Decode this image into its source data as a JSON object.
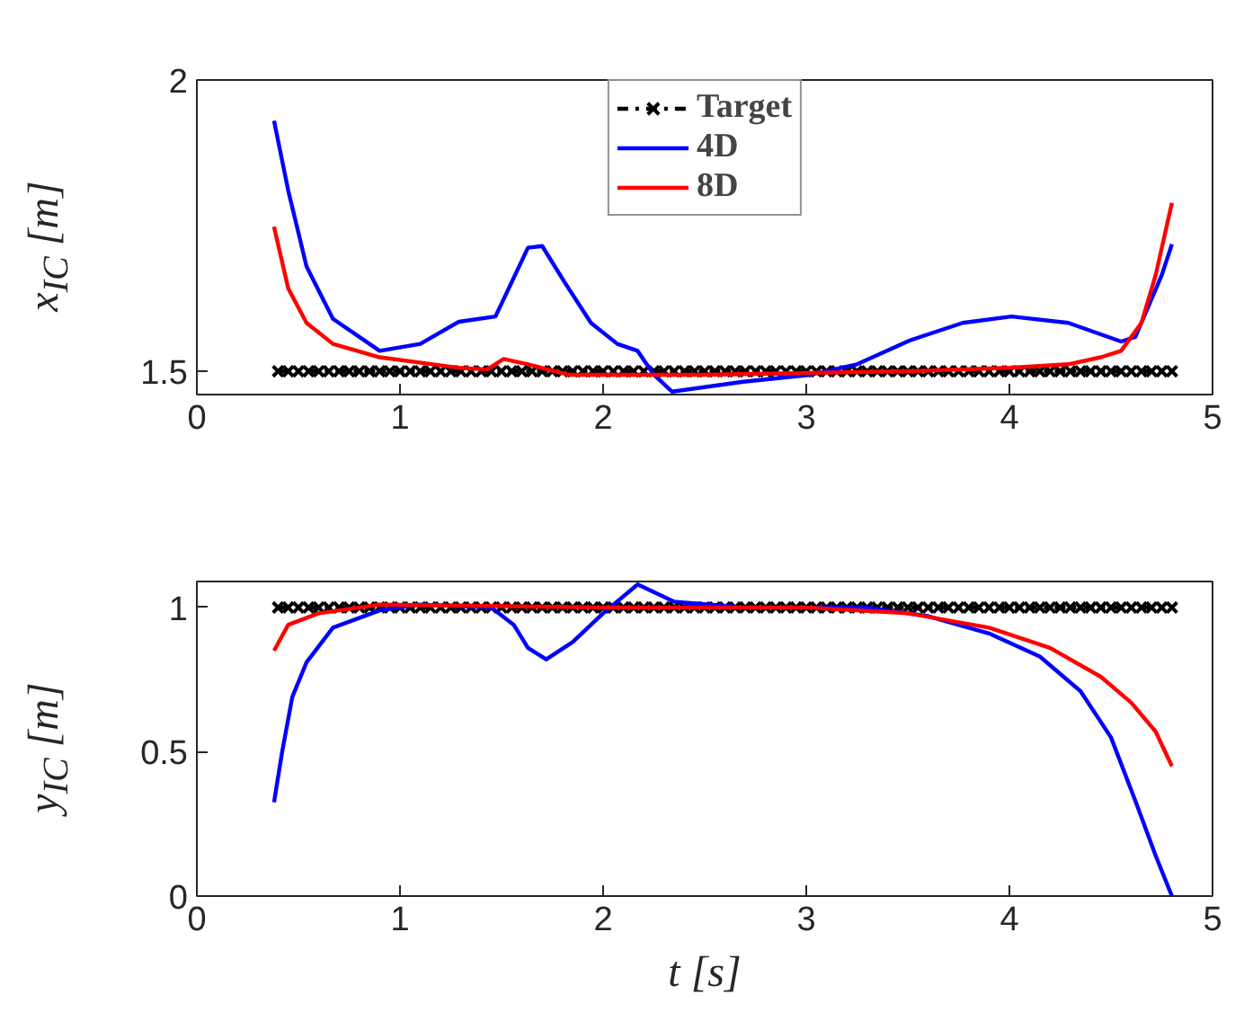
{
  "chart_data": [
    {
      "type": "line",
      "ylabel": "x$_{IC}$ [m]",
      "xlim": [
        0,
        5
      ],
      "xticks": [
        0,
        1,
        2,
        3,
        4,
        5
      ],
      "ylim": [
        1.46,
        2.0
      ],
      "yticks": [
        1.5,
        2
      ],
      "grid": false,
      "legend": "top",
      "series": [
        {
          "name": "Target",
          "color": "#000000",
          "line_style": "dashdot",
          "marker": "cross",
          "x": [
            0.4,
            0.45,
            0.5,
            0.55,
            0.6,
            0.65,
            0.7,
            0.75,
            0.8,
            0.85,
            0.9,
            0.95,
            1.0,
            1.05,
            1.1,
            1.15,
            1.2,
            1.25,
            1.3,
            1.35,
            1.4,
            1.45,
            1.5,
            1.55,
            1.6,
            1.65,
            1.7,
            1.75,
            1.8,
            1.85,
            1.9,
            1.95,
            2.0,
            2.05,
            2.1,
            2.15,
            2.2,
            2.25,
            2.3,
            2.35,
            2.4,
            2.45,
            2.5,
            2.55,
            2.6,
            2.65,
            2.7,
            2.75,
            2.8,
            2.85,
            2.9,
            2.95,
            3.0,
            3.05,
            3.1,
            3.15,
            3.2,
            3.25,
            3.3,
            3.35,
            3.4,
            3.45,
            3.5,
            3.55,
            3.6,
            3.65,
            3.7,
            3.75,
            3.8,
            3.85,
            3.9,
            3.95,
            4.0,
            4.05,
            4.1,
            4.15,
            4.2,
            4.25,
            4.3,
            4.35,
            4.4,
            4.45,
            4.5,
            4.55,
            4.6,
            4.65,
            4.7,
            4.75,
            4.8
          ],
          "values": [
            1.5,
            1.5,
            1.5,
            1.5,
            1.5,
            1.5,
            1.5,
            1.5,
            1.5,
            1.5,
            1.5,
            1.5,
            1.5,
            1.5,
            1.5,
            1.5,
            1.5,
            1.5,
            1.5,
            1.5,
            1.5,
            1.5,
            1.5,
            1.5,
            1.5,
            1.5,
            1.5,
            1.5,
            1.5,
            1.5,
            1.5,
            1.5,
            1.5,
            1.5,
            1.5,
            1.5,
            1.5,
            1.5,
            1.5,
            1.5,
            1.5,
            1.5,
            1.5,
            1.5,
            1.5,
            1.5,
            1.5,
            1.5,
            1.5,
            1.5,
            1.5,
            1.5,
            1.5,
            1.5,
            1.5,
            1.5,
            1.5,
            1.5,
            1.5,
            1.5,
            1.5,
            1.5,
            1.5,
            1.5,
            1.5,
            1.5,
            1.5,
            1.5,
            1.5,
            1.5,
            1.5,
            1.5,
            1.5,
            1.5,
            1.5,
            1.5,
            1.5,
            1.5,
            1.5,
            1.5,
            1.5,
            1.5,
            1.5,
            1.5,
            1.5,
            1.5,
            1.5,
            1.5,
            1.5
          ]
        },
        {
          "name": "4D",
          "color": "#0000ff",
          "x": [
            0.38,
            0.45,
            0.54,
            0.67,
            0.9,
            1.1,
            1.29,
            1.47,
            1.55,
            1.63,
            1.7,
            1.81,
            1.94,
            2.07,
            2.17,
            2.25,
            2.34,
            2.69,
            3.02,
            3.25,
            3.51,
            3.77,
            4.01,
            4.29,
            4.55,
            4.62,
            4.75,
            4.8
          ],
          "values": [
            1.93,
            1.81,
            1.68,
            1.59,
            1.535,
            1.547,
            1.585,
            1.594,
            1.653,
            1.712,
            1.715,
            1.653,
            1.583,
            1.547,
            1.535,
            1.494,
            1.465,
            1.482,
            1.494,
            1.512,
            1.553,
            1.583,
            1.594,
            1.583,
            1.551,
            1.559,
            1.665,
            1.718
          ]
        },
        {
          "name": "8D",
          "color": "#ff0000",
          "x": [
            0.38,
            0.45,
            0.54,
            0.67,
            0.9,
            1.29,
            1.43,
            1.51,
            1.63,
            1.83,
            2.5,
            3.5,
            4.0,
            4.29,
            4.45,
            4.55,
            4.65,
            4.72,
            4.8
          ],
          "values": [
            1.748,
            1.642,
            1.583,
            1.547,
            1.524,
            1.506,
            1.503,
            1.521,
            1.512,
            1.494,
            1.494,
            1.5,
            1.506,
            1.512,
            1.524,
            1.535,
            1.583,
            1.665,
            1.789
          ]
        }
      ]
    },
    {
      "type": "line",
      "xlabel": "t [s]",
      "ylabel": "y$_{IC}$ [m]",
      "xlim": [
        0,
        5
      ],
      "xticks": [
        0,
        1,
        2,
        3,
        4,
        5
      ],
      "ylim": [
        0,
        1.09
      ],
      "yticks": [
        0,
        0.5,
        1
      ],
      "grid": false,
      "series": [
        {
          "color": "#000000",
          "line_style": "dashdot",
          "marker": "cross",
          "x": [
            0.4,
            0.45,
            0.5,
            0.55,
            0.6,
            0.65,
            0.7,
            0.75,
            0.8,
            0.85,
            0.9,
            0.95,
            1.0,
            1.05,
            1.1,
            1.15,
            1.2,
            1.25,
            1.3,
            1.35,
            1.4,
            1.45,
            1.5,
            1.55,
            1.6,
            1.65,
            1.7,
            1.75,
            1.8,
            1.85,
            1.9,
            1.95,
            2.0,
            2.05,
            2.1,
            2.15,
            2.2,
            2.25,
            2.3,
            2.35,
            2.4,
            2.45,
            2.5,
            2.55,
            2.6,
            2.65,
            2.7,
            2.75,
            2.8,
            2.85,
            2.9,
            2.95,
            3.0,
            3.05,
            3.1,
            3.15,
            3.2,
            3.25,
            3.3,
            3.35,
            3.4,
            3.45,
            3.5,
            3.55,
            3.6,
            3.65,
            3.7,
            3.75,
            3.8,
            3.85,
            3.9,
            3.95,
            4.0,
            4.05,
            4.1,
            4.15,
            4.2,
            4.25,
            4.3,
            4.35,
            4.4,
            4.45,
            4.5,
            4.55,
            4.6,
            4.65,
            4.7,
            4.75,
            4.8
          ],
          "values": [
            1,
            1,
            1,
            1,
            1,
            1,
            1,
            1,
            1,
            1,
            1,
            1,
            1,
            1,
            1,
            1,
            1,
            1,
            1,
            1,
            1,
            1,
            1,
            1,
            1,
            1,
            1,
            1,
            1,
            1,
            1,
            1,
            1,
            1,
            1,
            1,
            1,
            1,
            1,
            1,
            1,
            1,
            1,
            1,
            1,
            1,
            1,
            1,
            1,
            1,
            1,
            1,
            1,
            1,
            1,
            1,
            1,
            1,
            1,
            1,
            1,
            1,
            1,
            1,
            1,
            1,
            1,
            1,
            1,
            1,
            1,
            1,
            1,
            1,
            1,
            1,
            1,
            1,
            1,
            1,
            1,
            1,
            1,
            1,
            1,
            1,
            1,
            1,
            1
          ]
        },
        {
          "color": "#0000ff",
          "x": [
            0.38,
            0.42,
            0.47,
            0.54,
            0.67,
            0.9,
            1.1,
            1.45,
            1.56,
            1.63,
            1.72,
            1.85,
            2.0,
            2.17,
            2.35,
            2.7,
            3.3,
            3.6,
            3.9,
            4.15,
            4.35,
            4.5,
            4.62,
            4.72,
            4.8
          ],
          "values": [
            0.325,
            0.5,
            0.69,
            0.81,
            0.93,
            0.99,
            1.01,
            1.0,
            0.94,
            0.86,
            0.82,
            0.88,
            0.98,
            1.08,
            1.02,
            1.0,
            1.0,
            0.97,
            0.91,
            0.83,
            0.71,
            0.55,
            0.33,
            0.14,
            0
          ]
        },
        {
          "color": "#ff0000",
          "x": [
            0.38,
            0.45,
            0.6,
            0.9,
            2.0,
            3.0,
            3.5,
            3.9,
            4.2,
            4.45,
            4.6,
            4.72,
            4.8
          ],
          "values": [
            0.85,
            0.94,
            0.98,
            1.01,
            1.0,
            1.0,
            0.98,
            0.93,
            0.86,
            0.76,
            0.67,
            0.57,
            0.45
          ]
        }
      ]
    }
  ]
}
